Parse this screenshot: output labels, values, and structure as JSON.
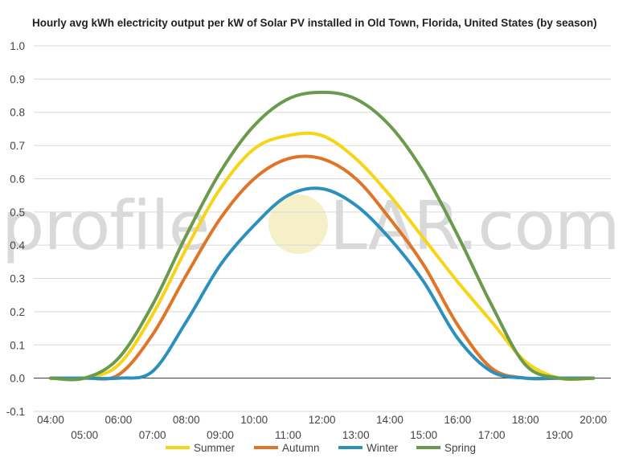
{
  "chart_data": {
    "type": "line",
    "title": "Hourly avg kWh electricity output per kW of Solar PV installed in Old Town, Florida, United States (by season)",
    "xlabel": "",
    "ylabel": "",
    "ylim": [
      -0.1,
      1.0
    ],
    "yticks": [
      "-0.1",
      "0.0",
      "0.1",
      "0.2",
      "0.3",
      "0.4",
      "0.5",
      "0.6",
      "0.7",
      "0.8",
      "0.9",
      "1.0"
    ],
    "x_tick_labels": [
      "04:00",
      "05:00",
      "06:00",
      "07:00",
      "08:00",
      "09:00",
      "10:00",
      "11:00",
      "12:00",
      "13:00",
      "14:00",
      "15:00",
      "16:00",
      "17:00",
      "18:00",
      "19:00",
      "20:00"
    ],
    "grid": true,
    "legend_position": "bottom",
    "watermark": {
      "left": "profile",
      "right": "LAR.com"
    },
    "series": [
      {
        "name": "Summer",
        "color": "#f7d416",
        "values": [
          0.0,
          0.0,
          0.04,
          0.19,
          0.39,
          0.57,
          0.69,
          0.73,
          0.73,
          0.66,
          0.55,
          0.42,
          0.29,
          0.17,
          0.05,
          0.0,
          0.0
        ]
      },
      {
        "name": "Autumn",
        "color": "#e07427",
        "values": [
          0.0,
          0.0,
          0.01,
          0.13,
          0.31,
          0.48,
          0.6,
          0.66,
          0.66,
          0.6,
          0.48,
          0.34,
          0.16,
          0.03,
          0.0,
          0.0,
          0.0
        ]
      },
      {
        "name": "Winter",
        "color": "#2c90be",
        "values": [
          0.0,
          0.0,
          0.0,
          0.02,
          0.17,
          0.34,
          0.46,
          0.55,
          0.57,
          0.52,
          0.42,
          0.29,
          0.12,
          0.02,
          0.0,
          0.0,
          0.0
        ]
      },
      {
        "name": "Spring",
        "color": "#6a9a4c",
        "values": [
          0.0,
          0.0,
          0.06,
          0.22,
          0.43,
          0.62,
          0.76,
          0.84,
          0.86,
          0.84,
          0.76,
          0.62,
          0.43,
          0.22,
          0.04,
          0.0,
          0.0
        ]
      }
    ]
  }
}
